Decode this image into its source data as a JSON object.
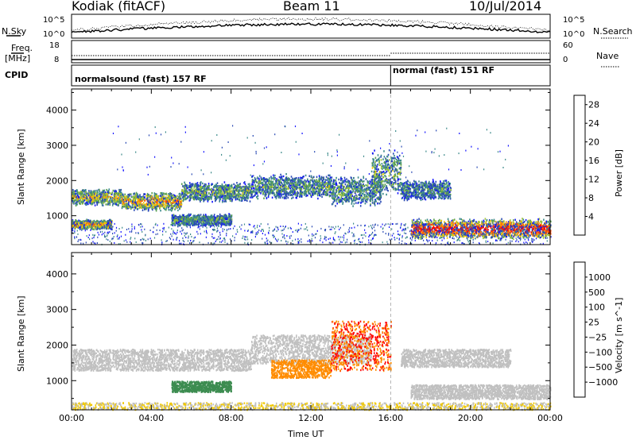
{
  "header": {
    "station": "Kodiak (fitACF)",
    "beam": "Beam 11",
    "date": "10/Jul/2014"
  },
  "strip_panels": {
    "nsky_label": "N.Sky",
    "nsky_ticks": [
      "10^5",
      "10^0"
    ],
    "nsearch_label": "N.Search",
    "nsearch_ticks": [
      "10^5",
      "10^0"
    ],
    "freq_label": "Freq.",
    "freq_unit": "[MHz]",
    "freq_ticks": [
      "18",
      "8"
    ],
    "nave_label": "Nave",
    "nave_ticks": [
      "60",
      "0"
    ],
    "cpid_label": "CPID",
    "cpid_segments": [
      {
        "label": "normalsound (fast) 157 RF",
        "start_hour": 0,
        "end_hour": 16
      },
      {
        "label": "normal (fast) 151 RF",
        "start_hour": 16,
        "end_hour": 24
      }
    ]
  },
  "colors": {
    "power_scale": [
      "#1414ff",
      "#2a4ab4",
      "#3c8a8a",
      "#5aa050",
      "#a0c43c",
      "#f0c800",
      "#ff8c00",
      "#ff4600",
      "#ff0000"
    ],
    "velocity_scale": [
      "#2828c8",
      "#2850b4",
      "#3c8c50",
      "#50a050",
      "#78c850",
      "#c8c8c8",
      "#c8c8c8",
      "#f0c800",
      "#ff8c00",
      "#ff5000",
      "#ff0000"
    ],
    "ground_scatter": "#c0c0c0"
  },
  "chart_data": [
    {
      "type": "heatmap",
      "panel": "power",
      "xlabel": "",
      "ylabel": "Slant Range [km]",
      "x_range_hours": [
        0,
        24
      ],
      "ylim": [
        180,
        4600
      ],
      "yticks": [
        "1000",
        "2000",
        "3000",
        "4000"
      ],
      "colorbar_label": "Power [dB]",
      "colorbar_ticks": [
        "4",
        "8",
        "12",
        "16",
        "20",
        "24",
        "28"
      ],
      "colorbar_range": [
        0,
        30
      ],
      "bands": [
        {
          "start": 0,
          "end": 2.5,
          "r_lo": 1350,
          "r_hi": 1750,
          "level": 0.45
        },
        {
          "start": 2.5,
          "end": 5.5,
          "r_lo": 1200,
          "r_hi": 1650,
          "level": 0.55
        },
        {
          "start": 5.5,
          "end": 9,
          "r_lo": 1450,
          "r_hi": 1950,
          "level": 0.35
        },
        {
          "start": 9,
          "end": 13,
          "r_lo": 1550,
          "r_hi": 2150,
          "level": 0.3
        },
        {
          "start": 13,
          "end": 15.5,
          "r_lo": 1350,
          "r_hi": 2100,
          "level": 0.3
        },
        {
          "start": 15,
          "end": 16.5,
          "r_lo": 1700,
          "r_hi": 2800,
          "level": 0.35
        },
        {
          "start": 16.5,
          "end": 19,
          "r_lo": 1500,
          "r_hi": 2000,
          "level": 0.25
        },
        {
          "start": 0,
          "end": 2,
          "r_lo": 650,
          "r_hi": 900,
          "level": 0.55
        },
        {
          "start": 5,
          "end": 8,
          "r_lo": 750,
          "r_hi": 1050,
          "level": 0.3
        },
        {
          "start": 17,
          "end": 24,
          "r_lo": 400,
          "r_hi": 900,
          "level": 0.75
        }
      ]
    },
    {
      "type": "heatmap",
      "panel": "velocity",
      "xlabel": "Time UT",
      "ylabel": "Slant Range [km]",
      "x_range_hours": [
        0,
        24
      ],
      "xticks": [
        "00:00",
        "04:00",
        "08:00",
        "12:00",
        "16:00",
        "20:00",
        "00:00"
      ],
      "ylim": [
        180,
        4600
      ],
      "yticks": [
        "1000",
        "2000",
        "3000",
        "4000"
      ],
      "colorbar_label": "Velocity [m s^-1]",
      "colorbar_ticks": [
        "1000",
        "500",
        "100",
        "25",
        "−25",
        "−100",
        "−500",
        "−1000"
      ],
      "bands": [
        {
          "start": 0,
          "end": 9,
          "r_lo": 1300,
          "r_hi": 1900,
          "kind": "ground"
        },
        {
          "start": 9,
          "end": 15,
          "r_lo": 1500,
          "r_hi": 2300,
          "kind": "ground"
        },
        {
          "start": 17,
          "end": 24,
          "r_lo": 500,
          "r_hi": 900,
          "kind": "ground"
        },
        {
          "start": 16.5,
          "end": 22,
          "r_lo": 1400,
          "r_hi": 1900,
          "kind": "ground"
        },
        {
          "start": 5,
          "end": 8,
          "r_lo": 700,
          "r_hi": 1000,
          "velocity": 300
        },
        {
          "start": 10,
          "end": 13,
          "r_lo": 1100,
          "r_hi": 1600,
          "velocity": -300
        },
        {
          "start": 13,
          "end": 16,
          "r_lo": 1300,
          "r_hi": 2700,
          "velocity": -500
        },
        {
          "start": 0,
          "end": 24,
          "r_lo": 200,
          "r_hi": 400,
          "kind": "noise"
        }
      ]
    }
  ]
}
